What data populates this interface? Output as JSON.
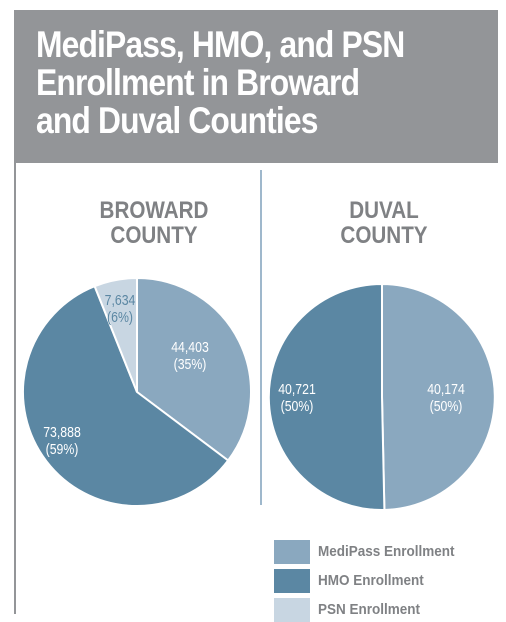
{
  "title": "MediPass, HMO, and PSN\nEnrollment in Broward\nand Duval Counties",
  "colors": {
    "medipass": "#8aa8bf",
    "hmo": "#5b87a3",
    "psn": "#c8d6e2",
    "label_on_light": "#ffffff"
  },
  "chart_data": [
    {
      "type": "pie",
      "title": "BROWARD\nCOUNTY",
      "slices": [
        {
          "category": "MediPass Enrollment",
          "value": 44403,
          "value_label": "44,403",
          "percent_label": "(35%)"
        },
        {
          "category": "HMO Enrollment",
          "value": 73888,
          "value_label": "73,888",
          "percent_label": "(59%)"
        },
        {
          "category": "PSN Enrollment",
          "value": 7634,
          "value_label": "7,634",
          "percent_label": "(6%)"
        }
      ]
    },
    {
      "type": "pie",
      "title": "DUVAL\nCOUNTY",
      "slices": [
        {
          "category": "MediPass Enrollment",
          "value": 40174,
          "value_label": "40,174",
          "percent_label": "(50%)"
        },
        {
          "category": "HMO Enrollment",
          "value": 40721,
          "value_label": "40,721",
          "percent_label": "(50%)"
        }
      ]
    }
  ],
  "legend": [
    {
      "label": "MediPass Enrollment",
      "color": "#8aa8bf"
    },
    {
      "label": "HMO Enrollment",
      "color": "#5b87a3"
    },
    {
      "label": "PSN Enrollment",
      "color": "#c8d6e2"
    }
  ]
}
